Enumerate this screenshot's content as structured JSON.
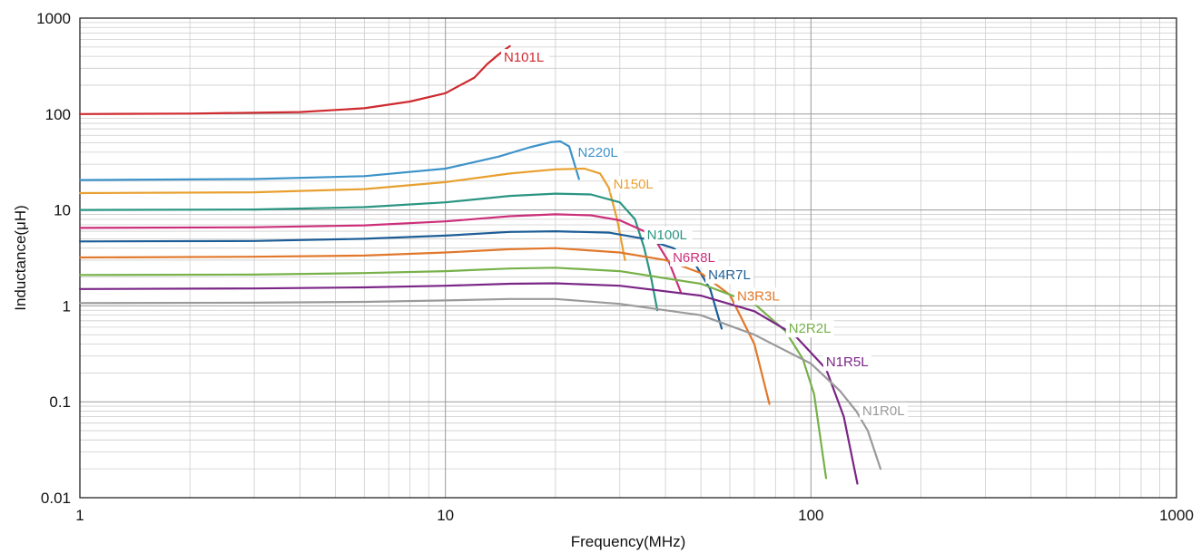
{
  "chart_data": {
    "type": "line",
    "xlabel": "Frequency(MHz)",
    "ylabel": "Inductance(μH)",
    "xscale": "log",
    "yscale": "log",
    "xlim": [
      1,
      1000
    ],
    "ylim": [
      0.01,
      1000
    ],
    "grid": true,
    "legend": "inline labels at curve ends",
    "x_tick_labels": [
      "1",
      "10",
      "100",
      "1000"
    ],
    "y_tick_labels": [
      "0.01",
      "0.1",
      "1",
      "10",
      "100",
      "1000"
    ],
    "series": [
      {
        "name": "N101L",
        "color": "#cf2a2f",
        "label_at": [
          13.8,
          0
        ],
        "points": [
          [
            1,
            100
          ],
          [
            2,
            101
          ],
          [
            4,
            105
          ],
          [
            6,
            115
          ],
          [
            8,
            135
          ],
          [
            10,
            165
          ],
          [
            12,
            240
          ],
          [
            13,
            330
          ],
          [
            14,
            420
          ],
          [
            15,
            510
          ]
        ]
      },
      {
        "name": "N220L",
        "color": "#3d93c9",
        "label_at": [
          22,
          0
        ],
        "points": [
          [
            1,
            20.5
          ],
          [
            3,
            21
          ],
          [
            6,
            22.5
          ],
          [
            10,
            27
          ],
          [
            14,
            36
          ],
          [
            17,
            45
          ],
          [
            19.5,
            51
          ],
          [
            20.6,
            52
          ],
          [
            21.8,
            46
          ],
          [
            23.2,
            21
          ]
        ]
      },
      {
        "name": "N150L",
        "color": "#e8a030",
        "label_at": [
          27.5,
          0
        ],
        "points": [
          [
            1,
            15
          ],
          [
            3,
            15.3
          ],
          [
            6,
            16.5
          ],
          [
            10,
            19.5
          ],
          [
            15,
            24
          ],
          [
            20,
            26.5
          ],
          [
            24,
            27
          ],
          [
            26.5,
            24
          ],
          [
            28,
            17
          ],
          [
            29.5,
            8
          ],
          [
            31,
            3
          ]
        ]
      },
      {
        "name": "N100L",
        "color": "#2a9582",
        "label_at": [
          34,
          0
        ],
        "points": [
          [
            1,
            10
          ],
          [
            3,
            10.1
          ],
          [
            6,
            10.7
          ],
          [
            10,
            12
          ],
          [
            15,
            14
          ],
          [
            20,
            14.8
          ],
          [
            25,
            14.5
          ],
          [
            30,
            12
          ],
          [
            33,
            8
          ],
          [
            35,
            4
          ],
          [
            36.5,
            2
          ],
          [
            38,
            0.9
          ]
        ]
      },
      {
        "name": "N6R8L",
        "color": "#cc2f7a",
        "label_at": [
          40,
          0
        ],
        "points": [
          [
            1,
            6.5
          ],
          [
            3,
            6.6
          ],
          [
            6,
            6.9
          ],
          [
            10,
            7.6
          ],
          [
            15,
            8.6
          ],
          [
            20,
            9
          ],
          [
            25,
            8.8
          ],
          [
            30,
            7.8
          ],
          [
            35,
            6
          ],
          [
            38,
            4.5
          ],
          [
            41,
            2.8
          ],
          [
            44,
            1.4
          ]
        ]
      },
      {
        "name": "N4R7L",
        "color": "#1d5d96",
        "label_at": [
          50,
          0
        ],
        "points": [
          [
            1,
            4.7
          ],
          [
            3,
            4.75
          ],
          [
            6,
            5
          ],
          [
            10,
            5.4
          ],
          [
            15,
            5.9
          ],
          [
            20,
            6
          ],
          [
            28,
            5.8
          ],
          [
            35,
            5
          ],
          [
            42,
            4
          ],
          [
            48,
            2.8
          ],
          [
            53,
            1.5
          ],
          [
            57,
            0.58
          ]
        ]
      },
      {
        "name": "N3R3L",
        "color": "#e1782b",
        "label_at": [
          60,
          0
        ],
        "points": [
          [
            1,
            3.2
          ],
          [
            3,
            3.25
          ],
          [
            6,
            3.35
          ],
          [
            10,
            3.6
          ],
          [
            15,
            3.9
          ],
          [
            20,
            4
          ],
          [
            30,
            3.6
          ],
          [
            40,
            3
          ],
          [
            50,
            2.2
          ],
          [
            60,
            1.3
          ],
          [
            70,
            0.4
          ],
          [
            77,
            0.095
          ]
        ]
      },
      {
        "name": "N2R2L",
        "color": "#77b14a",
        "label_at": [
          83,
          0
        ],
        "points": [
          [
            1,
            2.1
          ],
          [
            3,
            2.12
          ],
          [
            6,
            2.2
          ],
          [
            10,
            2.3
          ],
          [
            15,
            2.45
          ],
          [
            20,
            2.5
          ],
          [
            30,
            2.3
          ],
          [
            50,
            1.7
          ],
          [
            70,
            1.05
          ],
          [
            85,
            0.55
          ],
          [
            95,
            0.28
          ],
          [
            102,
            0.12
          ],
          [
            110,
            0.016
          ]
        ]
      },
      {
        "name": "N1R5L",
        "color": "#7a2686",
        "label_at": [
          105,
          0
        ],
        "points": [
          [
            1,
            1.5
          ],
          [
            3,
            1.52
          ],
          [
            6,
            1.56
          ],
          [
            10,
            1.62
          ],
          [
            15,
            1.7
          ],
          [
            20,
            1.72
          ],
          [
            30,
            1.62
          ],
          [
            50,
            1.28
          ],
          [
            70,
            0.88
          ],
          [
            90,
            0.5
          ],
          [
            110,
            0.22
          ],
          [
            123,
            0.07
          ],
          [
            134,
            0.014
          ]
        ]
      },
      {
        "name": "N1R0L",
        "color": "#9a9a9a",
        "label_at": [
          132,
          0
        ],
        "points": [
          [
            1,
            1.07
          ],
          [
            3,
            1.08
          ],
          [
            6,
            1.1
          ],
          [
            10,
            1.14
          ],
          [
            15,
            1.18
          ],
          [
            20,
            1.18
          ],
          [
            30,
            1.05
          ],
          [
            50,
            0.8
          ],
          [
            70,
            0.5
          ],
          [
            100,
            0.25
          ],
          [
            120,
            0.13
          ],
          [
            133,
            0.08
          ],
          [
            143,
            0.05
          ],
          [
            155,
            0.02
          ]
        ]
      }
    ]
  }
}
